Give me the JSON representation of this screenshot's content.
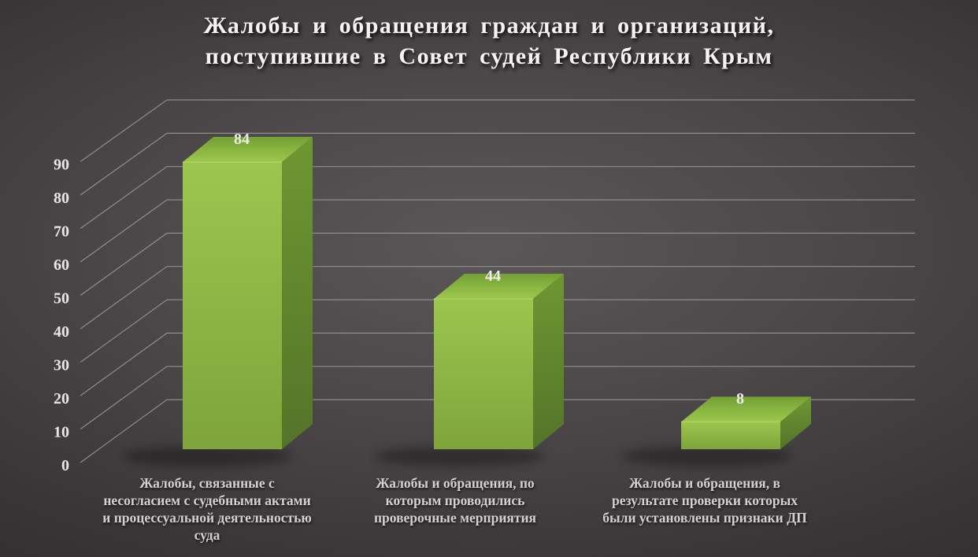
{
  "title": {
    "line1": "Жалобы и обращения граждан и организаций,",
    "line2": "поступившие в Совет судей Республики Крым"
  },
  "chart_data": {
    "type": "bar",
    "projection": "3d-column",
    "title": "Жалобы и обращения граждан и организаций, поступившие в Совет судей Республики Крым",
    "categories": [
      "Жалобы, связанные с несогласием с судебными актами и процессуальной деятельностью суда",
      "Жалобы и обращения, по которым проводились проверочные мерприятия",
      "Жалобы и обращения,  в результате проверки которых были установлены признаки ДП"
    ],
    "categories_wrapped": [
      [
        "Жалобы, связанные с",
        "несогласием с судебными актами",
        "и процессуальной деятельностью",
        "суда"
      ],
      [
        "Жалобы и обращения, по",
        "которым проводились",
        "проверочные мерприятия"
      ],
      [
        "Жалобы и обращения,  в",
        "результате проверки которых",
        "были установлены признаки ДП"
      ]
    ],
    "values": [
      84,
      44,
      8
    ],
    "y_ticks": [
      0,
      10,
      20,
      30,
      40,
      50,
      60,
      70,
      80,
      90
    ],
    "ylim": [
      0,
      90
    ],
    "xlabel": "",
    "ylabel": "",
    "grid": true,
    "legend": false
  },
  "colors": {
    "background_center": "#575354",
    "background_edge": "#262425",
    "bar_front_light": "#9bc64f",
    "bar_front_dark": "#7ea43b",
    "bar_top_back": "#74a035",
    "bar_top_front": "#9cc84d",
    "bar_side_light": "#6e9733",
    "bar_side_dark": "#547429",
    "bar_edge_highlight": "#b9de68",
    "gridline": "#9a9a9a",
    "tick_text": "#e9e7e6",
    "value_text": "#edecec",
    "category_text": "#d3d1d1",
    "title_text": "#f4f3f2"
  }
}
